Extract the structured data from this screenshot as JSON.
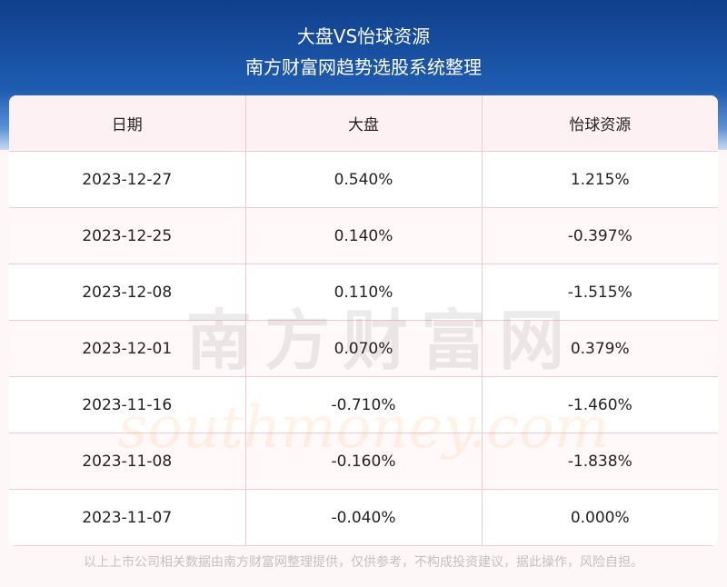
{
  "header": {
    "title": "大盘VS怡球资源",
    "subtitle": "南方财富网趋势选股系统整理"
  },
  "table": {
    "columns": [
      "日期",
      "大盘",
      "怡球资源"
    ],
    "rows": [
      [
        "2023-12-27",
        "0.540%",
        "1.215%"
      ],
      [
        "2023-12-25",
        "0.140%",
        "-0.397%"
      ],
      [
        "2023-12-08",
        "0.110%",
        "-1.515%"
      ],
      [
        "2023-12-01",
        "0.070%",
        "0.379%"
      ],
      [
        "2023-11-16",
        "-0.710%",
        "-1.460%"
      ],
      [
        "2023-11-08",
        "-0.160%",
        "-1.838%"
      ],
      [
        "2023-11-07",
        "-0.040%",
        "0.000%"
      ]
    ]
  },
  "watermark": {
    "cn": "南方财富网",
    "en": "southmoney.com"
  },
  "footer": {
    "note": "以上上市公司相关数据由南方财富网整理提供，仅供参考，不构成投资建议，据此操作，风险自担。"
  }
}
